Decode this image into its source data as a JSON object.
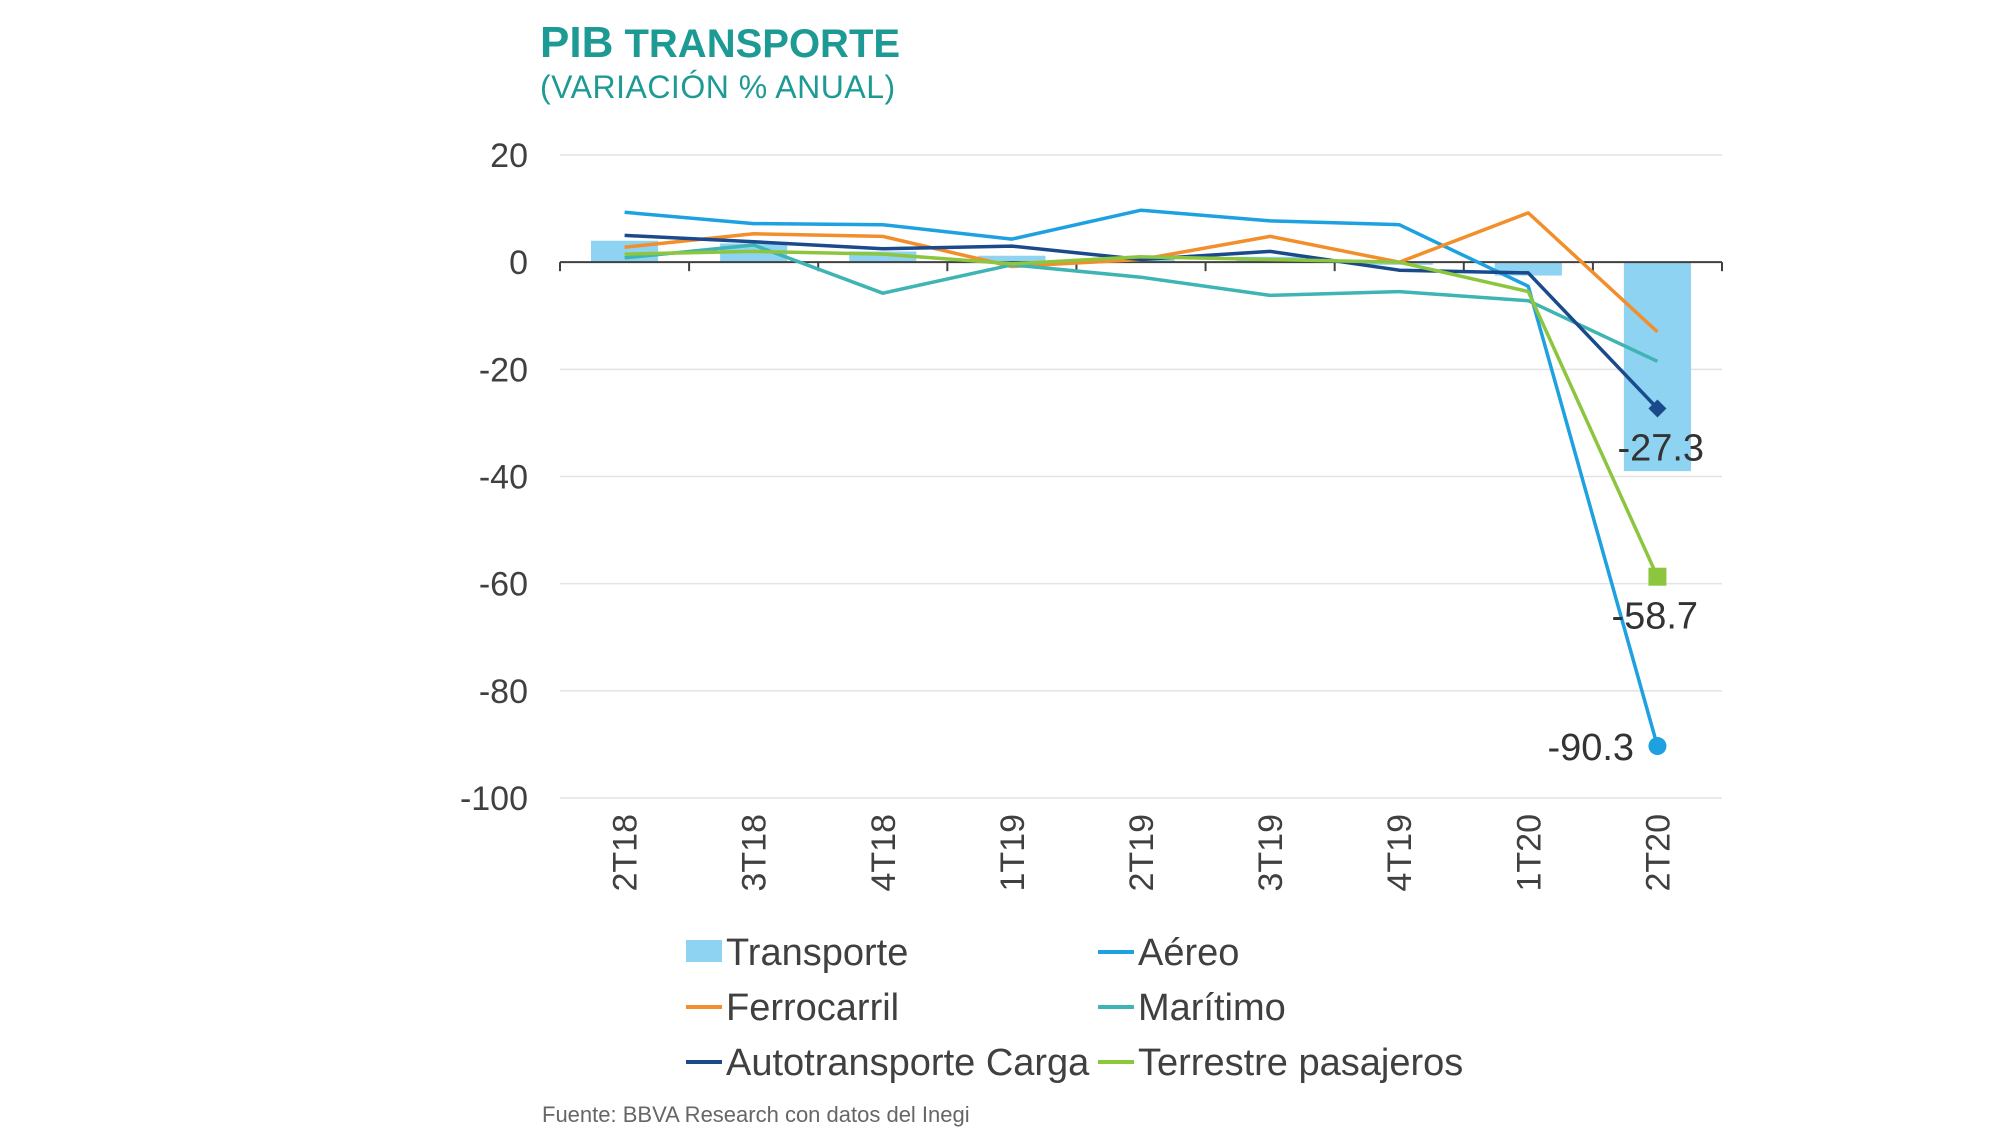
{
  "header": {
    "title_main": "PIB",
    "title_rest": "TRANSPORTE",
    "subtitle": "(VARIACIÓN % ANUAL)"
  },
  "source": "Fuente: BBVA Research con datos del Inegi",
  "chart_data": {
    "type": "bar",
    "categories": [
      "2T18",
      "3T18",
      "4T18",
      "1T19",
      "2T19",
      "3T19",
      "4T19",
      "1T20",
      "2T20"
    ],
    "ylim": [
      -100,
      20
    ],
    "yticks": [
      20,
      0,
      -20,
      -40,
      -60,
      -80,
      -100
    ],
    "grid": true,
    "legend_position": "bottom",
    "bar_series": {
      "name": "Transporte",
      "color": "#8fd3f2",
      "values": [
        4.0,
        3.5,
        2.0,
        1.2,
        0.5,
        1.0,
        -0.5,
        -2.5,
        -39.0
      ]
    },
    "series": [
      {
        "name": "Aéreo",
        "color": "#1ea1e0",
        "values": [
          9.3,
          7.2,
          7.0,
          4.3,
          9.7,
          7.7,
          7.0,
          -4.5,
          -90.3
        ]
      },
      {
        "name": "Ferrocarril",
        "color": "#f28e2b",
        "values": [
          2.8,
          5.3,
          4.8,
          -0.8,
          0.5,
          4.8,
          0.0,
          9.2,
          -13.0
        ]
      },
      {
        "name": "Marítimo",
        "color": "#3fb4b4",
        "values": [
          0.8,
          3.2,
          -5.8,
          -0.5,
          -2.8,
          -6.2,
          -5.5,
          -7.2,
          -18.5
        ]
      },
      {
        "name": "Autotransporte Carga",
        "color": "#1a4a8c",
        "values": [
          5.0,
          3.8,
          2.5,
          3.0,
          0.5,
          2.0,
          -1.5,
          -2.0,
          -27.3
        ]
      },
      {
        "name": "Terrestre pasajeros",
        "color": "#8cc63f",
        "values": [
          1.5,
          2.0,
          1.5,
          -0.3,
          1.0,
          0.5,
          0.0,
          -5.5,
          -58.7
        ]
      }
    ],
    "data_labels": [
      {
        "series": "Autotransporte Carga",
        "value": -27.3,
        "text": "-27.3",
        "marker": "diamond"
      },
      {
        "series": "Terrestre pasajeros",
        "value": -58.7,
        "text": "-58.7",
        "marker": "square"
      },
      {
        "series": "Aéreo",
        "value": -90.3,
        "text": "-90.3",
        "marker": "circle"
      }
    ],
    "legend": [
      {
        "label": "Transporte",
        "type": "bar",
        "color": "#8fd3f2"
      },
      {
        "label": "Aéreo",
        "type": "line",
        "color": "#1ea1e0"
      },
      {
        "label": "Ferrocarril",
        "type": "line",
        "color": "#f28e2b"
      },
      {
        "label": "Marítimo",
        "type": "line",
        "color": "#3fb4b4"
      },
      {
        "label": "Autotransporte Carga",
        "type": "line",
        "color": "#1a4a8c"
      },
      {
        "label": "Terrestre pasajeros",
        "type": "line",
        "color": "#8cc63f"
      }
    ]
  }
}
